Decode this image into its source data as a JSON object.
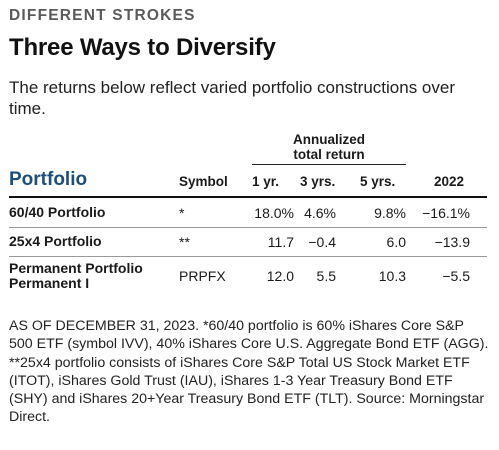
{
  "kicker": "DIFFERENT STROKES",
  "title": "Three Ways to Diversify",
  "subtitle": "The returns below reflect varied portfolio constructions over time.",
  "table": {
    "group_header_line1": "Annualized",
    "group_header_line2": "total return",
    "columns": {
      "portfolio": "Portfolio",
      "symbol": "Symbol",
      "y1": "1 yr.",
      "y3": "3 yrs.",
      "y5": "5 yrs.",
      "y2022": "2022"
    },
    "rows": [
      {
        "name_line1": "60/40 Portfolio",
        "name_line2": "",
        "symbol": "*",
        "y1": "18.0%",
        "y3": "4.6%",
        "y5": "9.8%",
        "y2022": "−16.1%"
      },
      {
        "name_line1": "25x4 Portfolio",
        "name_line2": "",
        "symbol": "**",
        "y1": "11.7",
        "y3": "−0.4",
        "y5": "6.0",
        "y2022": "−13.9"
      },
      {
        "name_line1": "Permanent Portfolio",
        "name_line2": "Permanent I",
        "symbol": "PRPFX",
        "y1": "12.0",
        "y3": "5.5",
        "y5": "10.3",
        "y2022": "−5.5"
      }
    ]
  },
  "footnote": "AS OF DECEMBER 31, 2023. *60/40 portfolio is 60% iShares Core S&P 500 ETF (symbol IVV), 40% iShares Core U.S. Aggregate Bond ETF (AGG). **25x4 portfolio consists of iShares Core S&P Total US Stock Market ETF (ITOT), iShares Gold Trust (IAU), iShares 1-3 Year Treasury Bond ETF (SHY) and iShares 20+Year Treasury Bond ETF (TLT). Source: Morningstar Direct."
}
